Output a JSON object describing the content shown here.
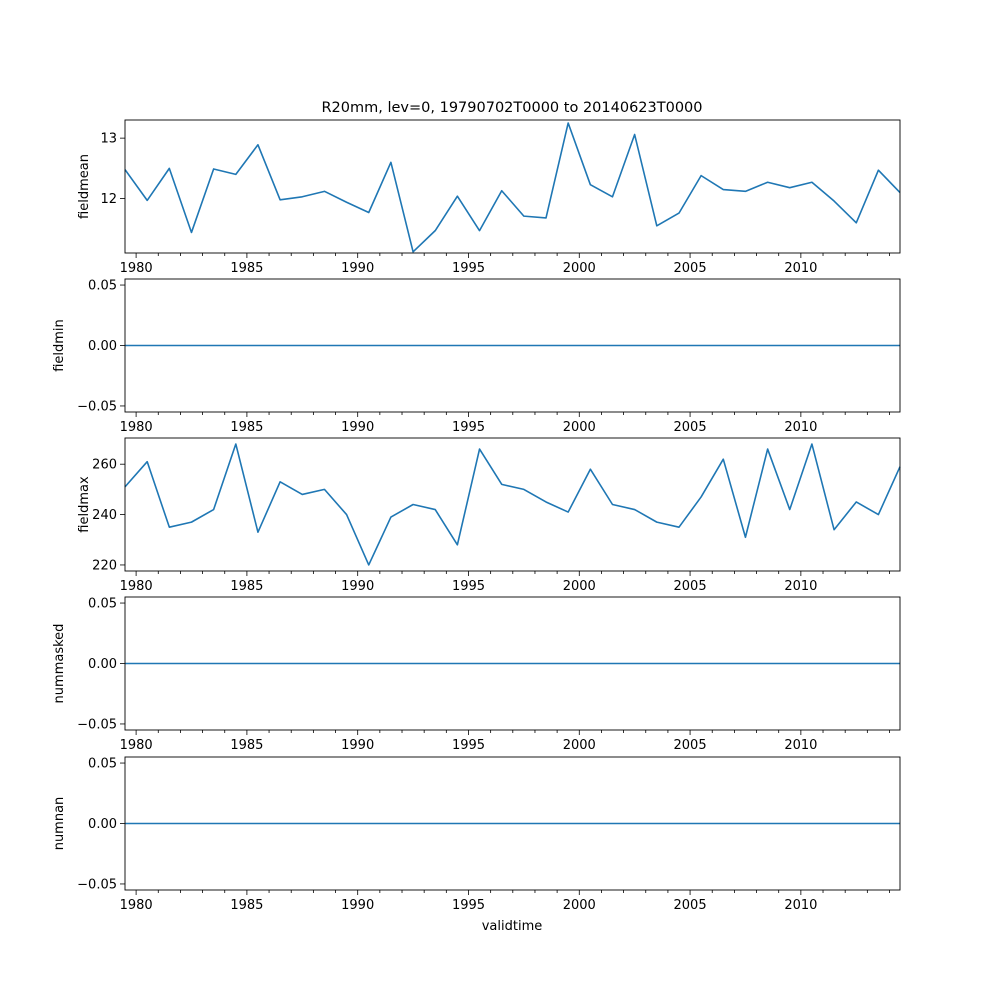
{
  "figure": {
    "title": "R20mm, lev=0, 19790702T0000 to 20140623T0000",
    "xlabel": "validtime",
    "line_color": "#1f77b4",
    "x_range": [
      "1979-07-02",
      "2014-06-23"
    ],
    "x_tick_labels": [
      "1980",
      "1985",
      "1990",
      "1995",
      "2000",
      "2005",
      "2010"
    ]
  },
  "chart_data": [
    {
      "type": "line",
      "ylabel": "fieldmean",
      "ylim": [
        11.1,
        13.3
      ],
      "yticks": [
        12,
        13
      ],
      "ytick_labels": [
        "12",
        "13"
      ],
      "x": [
        "1979-07-02",
        "1980-07-02",
        "1981-07-02",
        "1982-07-02",
        "1983-07-02",
        "1984-07-02",
        "1985-07-02",
        "1986-07-02",
        "1987-07-02",
        "1988-07-02",
        "1989-07-02",
        "1990-07-02",
        "1991-07-02",
        "1992-07-02",
        "1993-07-02",
        "1994-07-02",
        "1995-07-02",
        "1996-07-02",
        "1997-07-02",
        "1998-07-02",
        "1999-07-02",
        "2000-07-02",
        "2001-07-02",
        "2002-07-02",
        "2003-07-02",
        "2004-07-02",
        "2005-07-02",
        "2006-07-02",
        "2007-07-02",
        "2008-07-02",
        "2009-07-02",
        "2010-07-02",
        "2011-07-02",
        "2012-07-02",
        "2013-07-02",
        "2014-06-23"
      ],
      "values": [
        12.48,
        11.97,
        12.5,
        11.44,
        12.49,
        12.4,
        12.89,
        11.98,
        12.03,
        12.12,
        11.94,
        11.77,
        12.6,
        11.12,
        11.47,
        12.04,
        11.47,
        12.13,
        11.71,
        11.68,
        13.25,
        12.23,
        12.03,
        13.06,
        11.55,
        11.76,
        12.38,
        12.15,
        12.12,
        12.27,
        12.18,
        12.27,
        11.96,
        11.6,
        12.47,
        12.1
      ]
    },
    {
      "type": "line",
      "ylabel": "fieldmin",
      "ylim": [
        -0.055,
        0.055
      ],
      "yticks": [
        -0.05,
        0.0,
        0.05
      ],
      "ytick_labels": [
        "−0.05",
        "0.00",
        "0.05"
      ],
      "x": [
        "1979-07-02",
        "2014-06-23"
      ],
      "values": [
        0,
        0
      ]
    },
    {
      "type": "line",
      "ylabel": "fieldmax",
      "ylim": [
        217.6,
        270.4
      ],
      "yticks": [
        220,
        240,
        260
      ],
      "ytick_labels": [
        "220",
        "240",
        "260"
      ],
      "x": [
        "1979-07-02",
        "1980-07-02",
        "1981-07-02",
        "1982-07-02",
        "1983-07-02",
        "1984-07-02",
        "1985-07-02",
        "1986-07-02",
        "1987-07-02",
        "1988-07-02",
        "1989-07-02",
        "1990-07-02",
        "1991-07-02",
        "1992-07-02",
        "1993-07-02",
        "1994-07-02",
        "1995-07-02",
        "1996-07-02",
        "1997-07-02",
        "1998-07-02",
        "1999-07-02",
        "2000-07-02",
        "2001-07-02",
        "2002-07-02",
        "2003-07-02",
        "2004-07-02",
        "2005-07-02",
        "2006-07-02",
        "2007-07-02",
        "2008-07-02",
        "2009-07-02",
        "2010-07-02",
        "2011-07-02",
        "2012-07-02",
        "2013-07-02",
        "2014-06-23"
      ],
      "values": [
        251,
        261,
        235,
        237,
        242,
        268,
        233,
        253,
        248,
        250,
        240,
        220,
        239,
        244,
        242,
        228,
        266,
        252,
        250,
        245,
        241,
        258,
        244,
        242,
        237,
        235,
        247,
        262,
        231,
        266,
        242,
        268,
        234,
        245,
        240,
        259
      ]
    },
    {
      "type": "line",
      "ylabel": "nummasked",
      "ylim": [
        -0.055,
        0.055
      ],
      "yticks": [
        -0.05,
        0.0,
        0.05
      ],
      "ytick_labels": [
        "−0.05",
        "0.00",
        "0.05"
      ],
      "x": [
        "1979-07-02",
        "2014-06-23"
      ],
      "values": [
        0,
        0
      ]
    },
    {
      "type": "line",
      "ylabel": "numnan",
      "ylim": [
        -0.055,
        0.055
      ],
      "yticks": [
        -0.05,
        0.0,
        0.05
      ],
      "ytick_labels": [
        "−0.05",
        "0.00",
        "0.05"
      ],
      "x": [
        "1979-07-02",
        "2014-06-23"
      ],
      "values": [
        0,
        0
      ]
    }
  ]
}
